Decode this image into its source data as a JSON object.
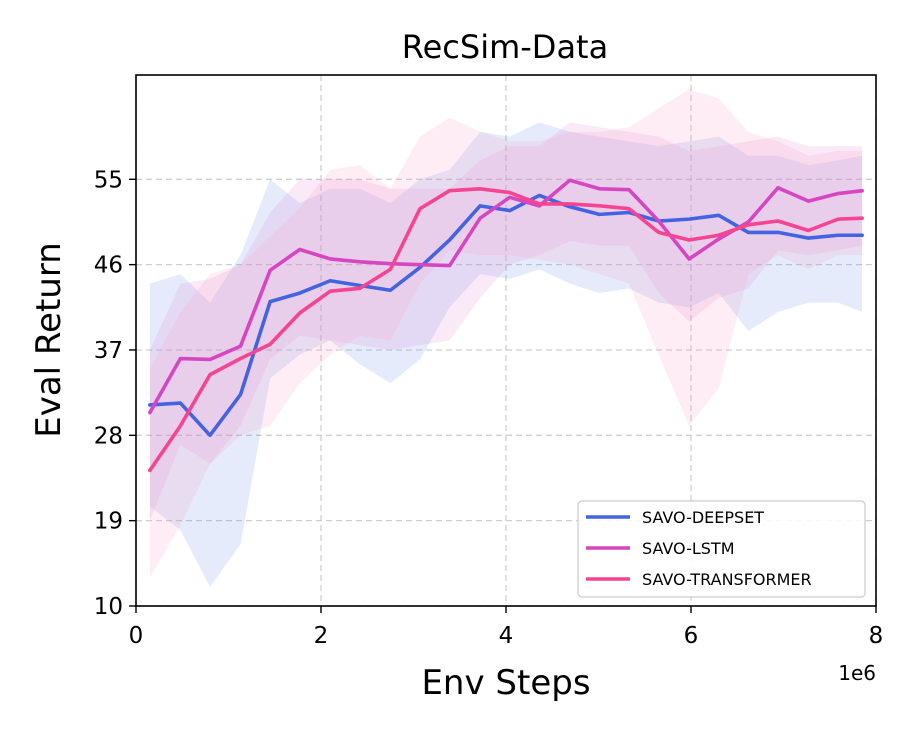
{
  "chart_data": {
    "type": "line",
    "title": "RecSim-Data",
    "xlabel": "Env Steps",
    "ylabel": "Eval Return",
    "x_offset_text": "1e6",
    "xlim": [
      0,
      8
    ],
    "ylim": [
      10,
      66
    ],
    "x_ticks": [
      0,
      2,
      4,
      6,
      8
    ],
    "x_tick_labels": [
      "0",
      "2",
      "4",
      "6",
      "8"
    ],
    "y_ticks": [
      10,
      19,
      28,
      37,
      46,
      55
    ],
    "y_tick_labels": [
      "10",
      "19",
      "28",
      "37",
      "46",
      "55"
    ],
    "grid": true,
    "legend_position": "lower-right",
    "x": [
      0.15,
      0.48,
      0.8,
      1.13,
      1.45,
      1.77,
      2.1,
      2.42,
      2.75,
      3.07,
      3.39,
      3.72,
      4.04,
      4.36,
      4.69,
      5.01,
      5.33,
      5.65,
      5.98,
      6.3,
      6.62,
      6.94,
      7.27,
      7.59,
      7.85
    ],
    "series": [
      {
        "name": "SAVO-DEEPSET",
        "color": "#4363e0",
        "band_color": "#6f8fe8",
        "values": [
          31.2,
          31.4,
          28.0,
          32.3,
          42.1,
          43.0,
          44.3,
          43.8,
          43.3,
          45.7,
          48.6,
          52.2,
          51.7,
          53.3,
          52.1,
          51.3,
          51.5,
          50.6,
          50.8,
          51.2,
          49.4,
          49.4,
          48.8,
          49.1,
          49.1
        ],
        "lower": [
          20.5,
          18.0,
          12.0,
          16.5,
          34.0,
          36.5,
          38.0,
          35.5,
          33.5,
          36.0,
          41.5,
          45.0,
          44.5,
          45.5,
          44.0,
          43.0,
          43.5,
          42.0,
          41.5,
          43.0,
          39.0,
          41.0,
          42.0,
          42.0,
          41.0
        ],
        "upper": [
          44.0,
          45.0,
          42.0,
          47.0,
          55.0,
          52.5,
          54.0,
          54.0,
          52.5,
          55.0,
          56.0,
          60.0,
          59.5,
          61.0,
          60.0,
          59.5,
          59.0,
          58.5,
          59.0,
          59.5,
          57.5,
          57.5,
          56.5,
          57.0,
          57.5
        ]
      },
      {
        "name": "SAVO-LSTM",
        "color": "#d646c0",
        "band_color": "#e48ad6",
        "values": [
          30.4,
          36.1,
          36.0,
          37.4,
          45.4,
          47.6,
          46.6,
          46.3,
          46.1,
          46.0,
          45.9,
          50.9,
          53.1,
          52.2,
          54.9,
          54.0,
          53.9,
          50.6,
          46.6,
          48.7,
          50.5,
          54.1,
          52.7,
          53.5,
          53.8
        ],
        "lower": [
          19.0,
          27.0,
          25.0,
          29.0,
          36.0,
          38.5,
          38.0,
          37.5,
          37.0,
          37.5,
          38.0,
          42.5,
          46.0,
          47.0,
          48.5,
          48.0,
          48.0,
          43.0,
          40.0,
          42.5,
          43.5,
          47.5,
          47.0,
          47.5,
          48.0
        ],
        "upper": [
          37.0,
          44.0,
          44.5,
          46.0,
          51.5,
          55.0,
          55.0,
          55.0,
          54.0,
          54.0,
          54.0,
          57.0,
          58.5,
          58.5,
          61.0,
          60.5,
          60.0,
          59.5,
          58.0,
          58.5,
          59.0,
          59.5,
          58.5,
          58.5,
          58.5
        ]
      },
      {
        "name": "SAVO-TRANSFORMER",
        "color": "#f54492",
        "band_color": "#f79ac3",
        "values": [
          24.3,
          29.0,
          34.4,
          36.1,
          37.6,
          40.9,
          43.2,
          43.5,
          45.5,
          51.9,
          53.8,
          54.0,
          53.6,
          52.4,
          52.4,
          52.2,
          51.9,
          49.4,
          48.6,
          49.1,
          50.2,
          50.6,
          49.6,
          50.8,
          50.9
        ],
        "lower": [
          13.0,
          18.5,
          25.0,
          28.0,
          29.0,
          33.5,
          36.5,
          38.5,
          38.0,
          44.0,
          47.5,
          47.0,
          47.0,
          46.5,
          46.0,
          45.0,
          44.0,
          36.5,
          29.0,
          33.0,
          45.0,
          47.0,
          45.5,
          47.0,
          47.0
        ],
        "upper": [
          35.0,
          41.0,
          45.0,
          46.0,
          49.0,
          52.0,
          56.0,
          56.5,
          54.0,
          59.5,
          61.5,
          60.0,
          59.0,
          59.0,
          60.0,
          60.0,
          60.5,
          62.5,
          64.5,
          63.5,
          60.0,
          59.0,
          57.5,
          58.0,
          58.0
        ]
      }
    ]
  }
}
